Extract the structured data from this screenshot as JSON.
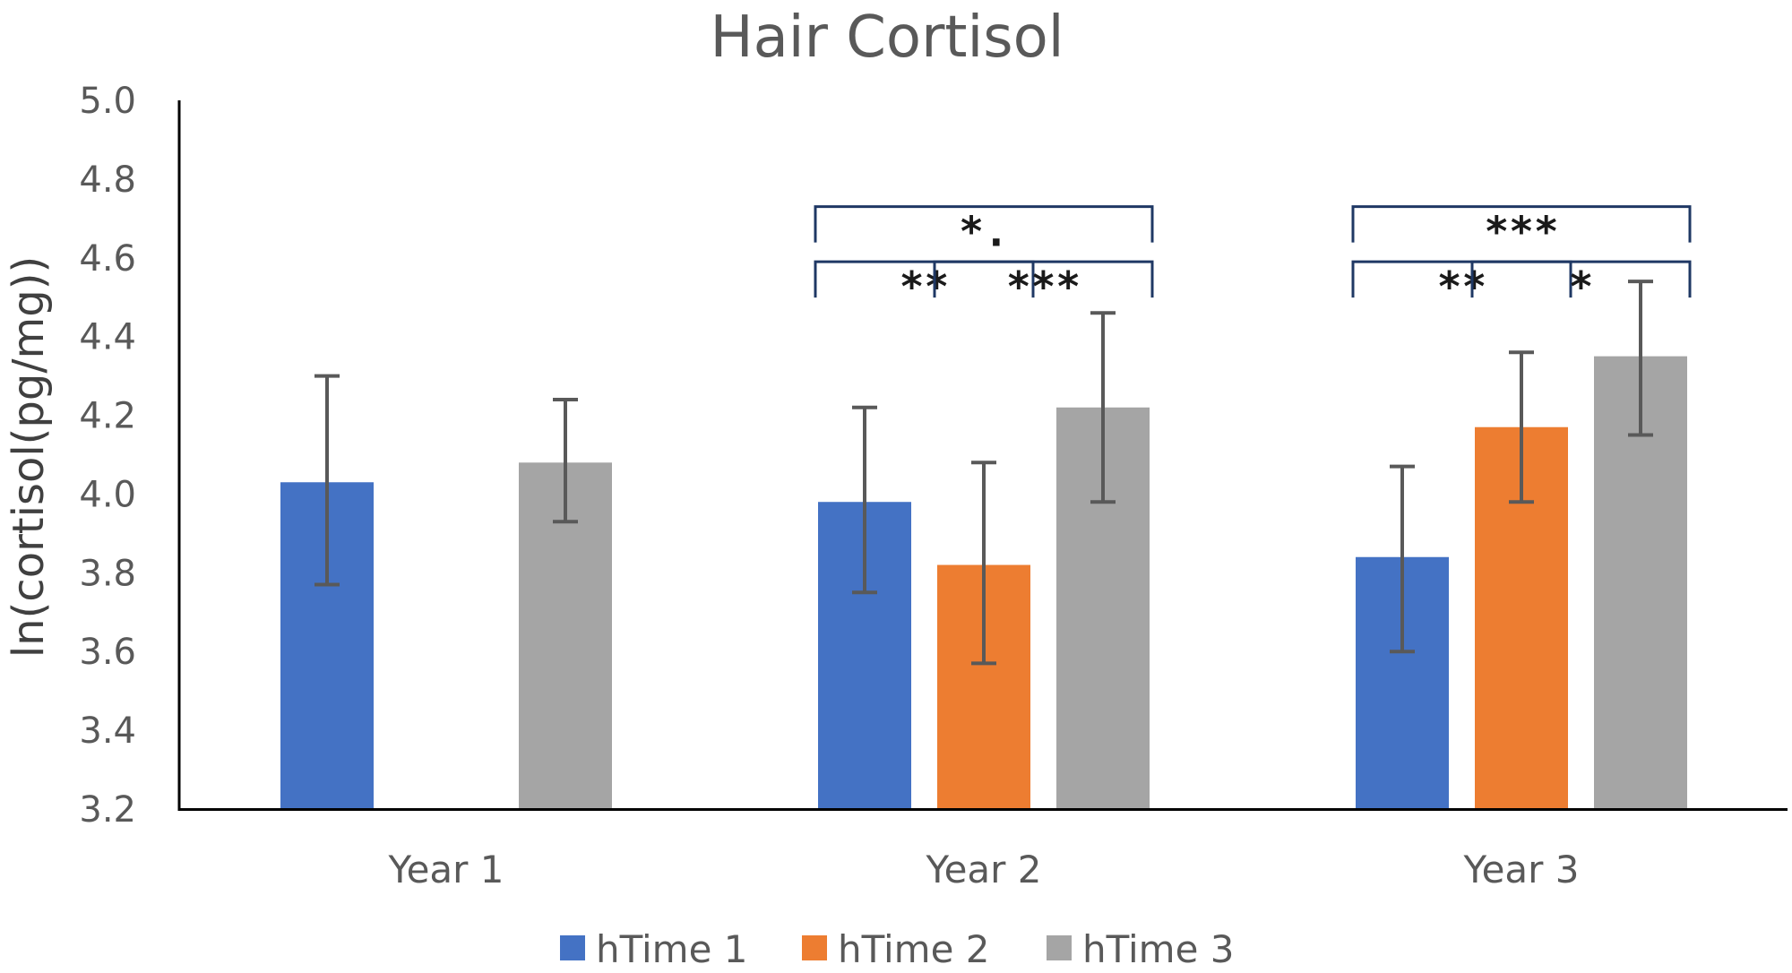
{
  "chart_data": {
    "type": "bar",
    "title": "Hair Cortisol",
    "ylabel": "ln(cortisol(pg/mg))",
    "xlabel": "",
    "ylim": [
      3.2,
      5.0
    ],
    "yticks": [
      "3.2",
      "3.4",
      "3.6",
      "3.8",
      "4.0",
      "4.2",
      "4.4",
      "4.6",
      "4.8",
      "5.0"
    ],
    "grid": false,
    "legend_position": "bottom",
    "categories": [
      "Year 1",
      "Year 2",
      "Year 3"
    ],
    "series": [
      {
        "name": "hTime 1",
        "color": "#4472C4",
        "values": [
          4.03,
          3.98,
          3.84
        ],
        "err_low": [
          3.77,
          3.75,
          3.6
        ],
        "err_high": [
          4.3,
          4.22,
          4.07
        ]
      },
      {
        "name": "hTime 2",
        "color": "#ED7D31",
        "values": [
          null,
          3.82,
          4.17
        ],
        "err_low": [
          null,
          3.57,
          3.98
        ],
        "err_high": [
          null,
          4.08,
          4.36
        ]
      },
      {
        "name": "hTime 3",
        "color": "#A5A5A5",
        "values": [
          4.08,
          4.22,
          4.35
        ],
        "err_low": [
          3.93,
          3.98,
          4.15
        ],
        "err_high": [
          4.24,
          4.46,
          4.54
        ]
      }
    ],
    "annotations": [
      {
        "category": "Year 2",
        "from_series": 0,
        "to_series": 1,
        "level": 4.59,
        "label": "**"
      },
      {
        "category": "Year 2",
        "from_series": 1,
        "to_series": 2,
        "level": 4.59,
        "label": "***"
      },
      {
        "category": "Year 2",
        "from_series": 0,
        "to_series": 2,
        "level": 4.73,
        "label": "*."
      },
      {
        "category": "Year 3",
        "from_series": 0,
        "to_series": 1,
        "level": 4.59,
        "label": "**"
      },
      {
        "category": "Year 3",
        "from_series": 1,
        "to_series": 2,
        "level": 4.59,
        "label": "*"
      },
      {
        "category": "Year 3",
        "from_series": 0,
        "to_series": 2,
        "level": 4.73,
        "label": "***"
      }
    ]
  }
}
